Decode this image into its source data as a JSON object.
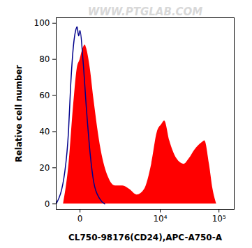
{
  "chart_data": {
    "type": "histogram",
    "x_label": "CL750-98176(CD24),APC-A750-A",
    "y_label": "Relative cell number",
    "annotations": [
      "WWW.PTGLAB.COM"
    ],
    "log": "x",
    "xlim": [
      -720,
      180000
    ],
    "xticks": [
      0,
      {
        "value": 10000,
        "label": "10⁴"
      },
      {
        "value": 100000,
        "label": "10⁵"
      }
    ],
    "ylim": [
      -3,
      103
    ],
    "yticks": [
      0,
      20,
      40,
      60,
      80,
      100
    ],
    "series": [
      {
        "type": "area",
        "color": "#ff0000",
        "x": [
          -430,
          -268,
          -136,
          -57,
          0,
          57,
          103,
          136,
          228,
          334,
          594,
          938,
          1392,
          1992,
          2785,
          3827,
          5206,
          7027,
          8895,
          10600,
          11900,
          14560,
          19350,
          25730,
          31340,
          39270,
          51990,
          57550,
          68790,
          79150,
          91000
        ],
        "values": [
          0,
          20,
          55,
          75,
          80,
          86,
          88,
          86,
          75,
          58,
          30,
          15,
          10,
          10,
          8,
          5,
          8,
          22,
          40,
          44,
          46,
          35,
          25,
          22,
          25,
          30,
          34,
          35,
          22,
          8,
          0
        ]
      },
      {
        "type": "line",
        "color": "#00008b",
        "x": [
          -720,
          -380,
          -268,
          -209,
          -136,
          -87,
          -57,
          -27,
          0,
          57,
          136,
          228,
          334,
          536,
          754
        ],
        "values": [
          0,
          18,
          40,
          65,
          88,
          96,
          98,
          93,
          96,
          80,
          52,
          28,
          12,
          3,
          0
        ]
      }
    ]
  }
}
